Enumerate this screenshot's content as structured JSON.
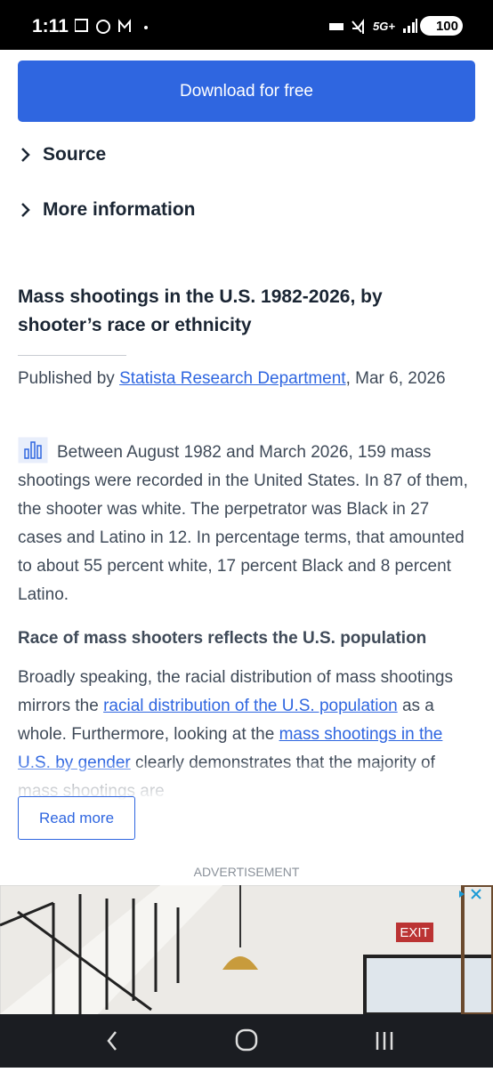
{
  "status_bar": {
    "time": "1:11",
    "network": "5G+",
    "battery": "100"
  },
  "download_button": "Download for free",
  "accordions": [
    "Source",
    "More information"
  ],
  "article": {
    "title": "Mass shootings in the U.S. 1982-2026, by shooter’s race or ethnicity",
    "published": [
      {
        "text": "Published by "
      },
      {
        "text": "Statista Research Department",
        "style": "link"
      },
      {
        "text": ", Mar 6, 2026"
      }
    ],
    "paragraph_1": "Between August 1982 and March 2026, 159 mass shootings were recorded in the United States. In 87 of them, the shooter was white. The perpetrator was Black in 27 cases and Latino in 12. In percentage terms, that amounted to about 55 percent white, 17 percent Black and 8 percent Latino.",
    "subheading": "Race of mass shooters reflects the U.S. population",
    "paragraph_2": [
      {
        "text": "Broadly speaking, the racial distribution of mass shootings mirrors the "
      },
      {
        "text": "racial distribution of the U.S. population",
        "style": "link"
      },
      {
        "text": " as a whole. Furthermore, looking at the "
      },
      {
        "text": "mass shootings in the U.S. by gender",
        "style": "link"
      },
      {
        "text": " clearly demonstrates that the majority of mass shootings are"
      }
    ],
    "read_more": "Read more"
  },
  "ad_label": "ADVERTISEMENT",
  "ad_sign": "EXIT"
}
